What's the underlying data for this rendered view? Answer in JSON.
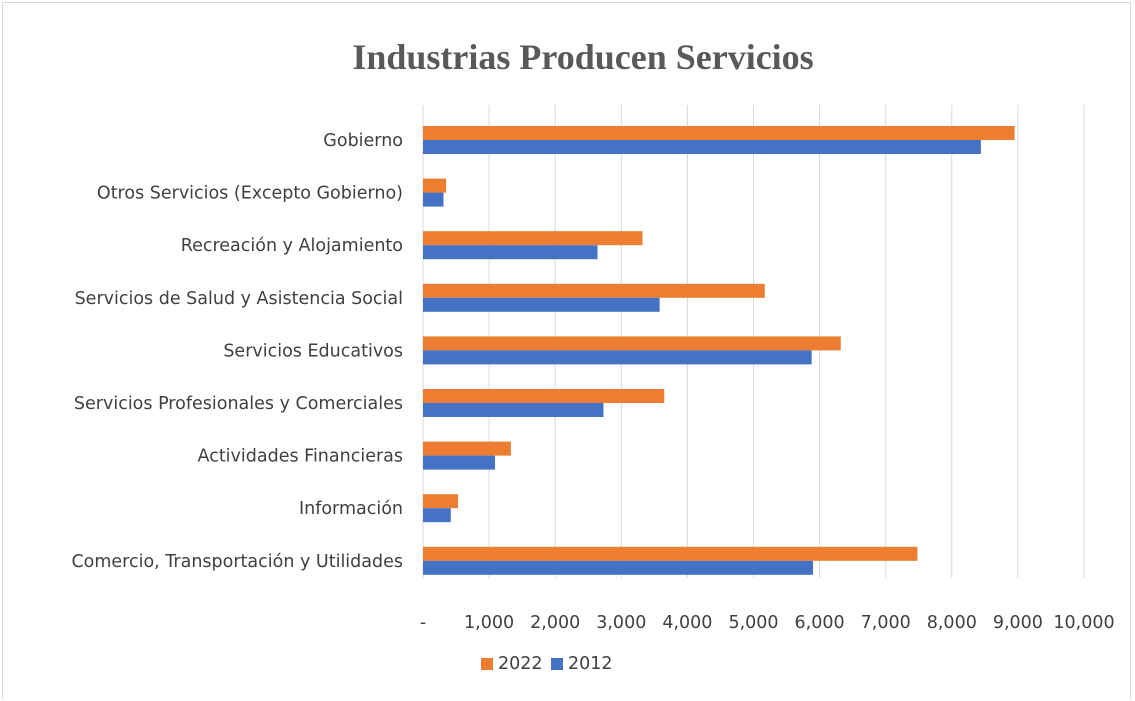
{
  "chart_data": {
    "type": "bar",
    "orientation": "horizontal",
    "title": "Industrias Producen Servicios",
    "categories": [
      "Comercio, Transportación y Utilidades",
      "Información ",
      "Actividades Financieras",
      "Servicios Profesionales y Comerciales",
      "Servicios Educativos",
      "Servicios de Salud y Asistencia Social",
      "Recreación y Alojamiento",
      "Otros Servicios (Excepto Gobierno)",
      "Gobierno"
    ],
    "series": [
      {
        "name": "2022",
        "color": "#ED7D31",
        "values": [
          7480,
          530,
          1330,
          3650,
          6320,
          5170,
          3320,
          350,
          8950
        ]
      },
      {
        "name": "2012",
        "color": "#4472C4",
        "values": [
          5900,
          420,
          1090,
          2730,
          5880,
          3580,
          2640,
          310,
          8440
        ]
      }
    ],
    "xlim": [
      0,
      10000
    ],
    "xticks": [
      0,
      1000,
      2000,
      3000,
      4000,
      5000,
      6000,
      7000,
      8000,
      9000,
      10000
    ],
    "xtick_labels": [
      "-",
      "1,000",
      "2,000",
      "3,000",
      "4,000",
      "5,000",
      "6,000",
      "7,000",
      "8,000",
      "9,000",
      "10,000"
    ],
    "grid": "vertical",
    "grid_color": "#d9d9d9",
    "legend": {
      "position": "bottom",
      "entries": [
        "2022",
        "2012"
      ]
    },
    "xlabel": "",
    "ylabel": ""
  }
}
